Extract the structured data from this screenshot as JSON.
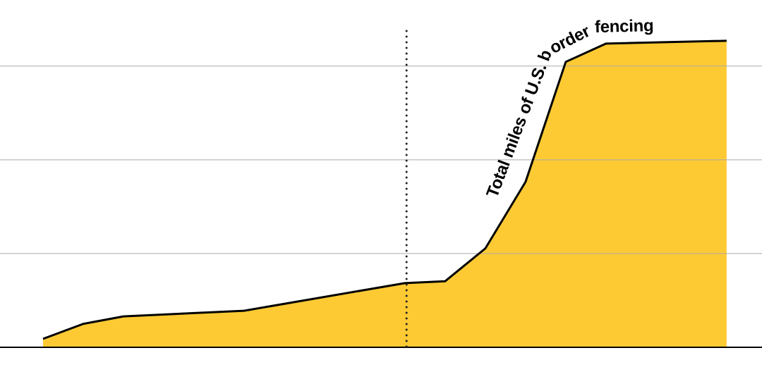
{
  "chart_data": {
    "type": "area",
    "annotation": "Total miles of U.S. border fencing",
    "x": [
      0,
      1,
      2,
      5,
      9,
      10,
      11,
      12,
      13,
      14,
      17
    ],
    "series": [
      {
        "color": "#fdca34",
        "values": [
          18,
          50,
          66,
          78,
          137,
          141,
          211,
          353,
          609,
          648,
          654
        ]
      }
    ],
    "xlim": [
      -1.07,
      17.88
    ],
    "ylim": [
      0,
      741
    ],
    "yticks": [
      200,
      400,
      600
    ],
    "grid": true,
    "vline_x": 9.04
  }
}
